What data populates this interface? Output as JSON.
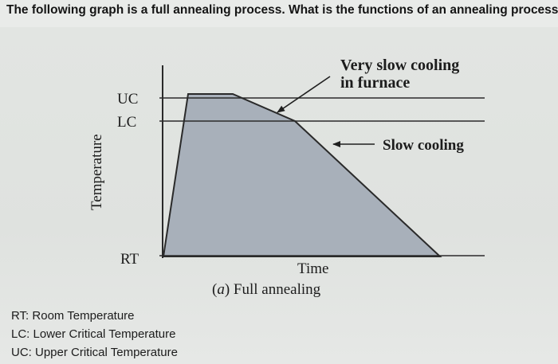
{
  "question": "The following graph is a full annealing process. What is the functions of an annealing process?",
  "diagram": {
    "y_axis_label": "Temperature",
    "levels": {
      "uc": "UC",
      "lc": "LC",
      "rt": "RT"
    },
    "annotations": {
      "very_slow_line1": "Very slow cooling",
      "very_slow_line2": "in furnace",
      "slow_cooling": "Slow cooling"
    },
    "x_axis_label": "Time",
    "caption_prefix": "(",
    "caption_letter": "a",
    "caption_rest": ") Full annealing",
    "colors": {
      "fill": "#a8b0ba",
      "line": "#2a2a2a"
    }
  },
  "legend": {
    "rt": "RT: Room Temperature",
    "lc": "LC: Lower Critical Temperature",
    "uc": "UC: Upper Critical Temperature"
  }
}
